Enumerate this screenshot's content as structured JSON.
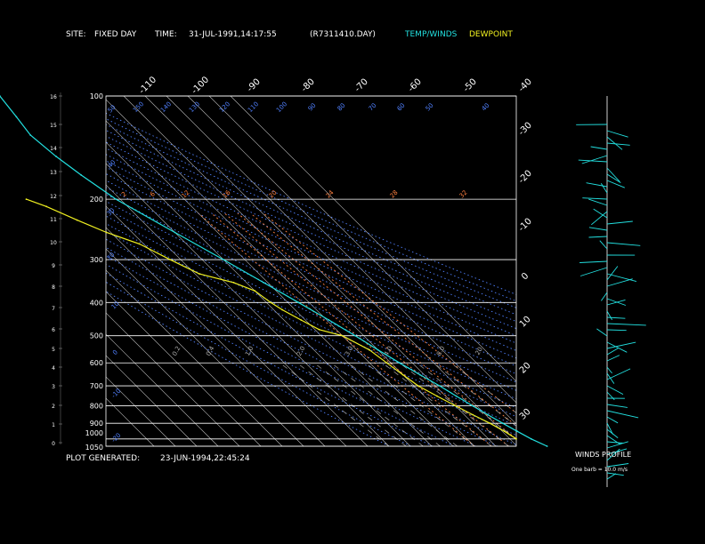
{
  "header": {
    "site_label": "SITE:",
    "site_value": "FIXED DAY",
    "time_label": "TIME:",
    "time_value": "31-JUL-1991,14:17:55",
    "file_value": "(R7311410.DAY)",
    "legend_temp": "TEMP/WINDS",
    "legend_dew": "DEWPOINT"
  },
  "footer": {
    "generated_label": "PLOT GENERATED:",
    "generated_value": "23-JUN-1994,22:45:24"
  },
  "winds_panel": {
    "title": "WINDS PROFILE",
    "note": "One barb = 10.0 m/s"
  },
  "colors": {
    "temp": "#22e0e0",
    "dew": "#f0f020",
    "text": "#ffffff",
    "axis": "#ffffff",
    "isotherm": "#ffffff",
    "dry_adiabat": "#5080ff",
    "moist_adiabat": "#ff8040",
    "mixing_ratio": "#aaaaaa",
    "winds": "#22e0e0"
  },
  "chart_data": [
    {
      "type": "line",
      "title": "",
      "ylabel": "",
      "xlabel": "",
      "pressure_ticks": [
        "100",
        "200",
        "300",
        "400",
        "500",
        "600",
        "700",
        "800",
        "900",
        "1000",
        "1050"
      ],
      "height_ticks": [
        "16",
        "15",
        "14",
        "13",
        "12",
        "11",
        "10",
        "9",
        "8",
        "7",
        "6",
        "5",
        "4",
        "3",
        "2",
        "1",
        "0"
      ],
      "top_temp_labels": [
        "-110",
        "-100",
        "-90",
        "-80",
        "-70",
        "-60",
        "-50",
        "-40"
      ],
      "right_temp_labels": [
        "-30",
        "-20",
        "-10",
        "0",
        "10",
        "20",
        "30"
      ],
      "dry_adiabat_labels": [
        "50",
        "40",
        "30",
        "20",
        "10",
        "0",
        "-10",
        "-20",
        "-30"
      ],
      "moist_adiabat_labels": [
        "150",
        "140",
        "130",
        "120",
        "110",
        "100",
        "90",
        "80",
        "70",
        "60",
        "50",
        "40"
      ],
      "mixing_ratio_labels": [
        "0.2",
        "0.4",
        "1.0",
        "2.0",
        "3.0",
        "4.0",
        "8.0",
        "20"
      ],
      "moist_labels_row": [
        "2",
        "6",
        "12",
        "16",
        "20",
        "24",
        "28",
        "32"
      ],
      "ylim_hPa": [
        1050,
        100
      ],
      "grid": true,
      "series": [
        {
          "name": "TEMP/WINDS",
          "pressure": [
            1050,
            1000,
            950,
            900,
            850,
            800,
            750,
            700,
            650,
            600,
            550,
            500,
            450,
            400,
            350,
            300,
            250,
            200,
            170,
            150,
            130,
            115,
            100
          ],
          "temperature": [
            34,
            30,
            27,
            24,
            21,
            18,
            15,
            12,
            8,
            4,
            0,
            -4,
            -9,
            -15,
            -22,
            -30,
            -40,
            -52,
            -57,
            -60,
            -62,
            -60,
            -58
          ]
        },
        {
          "name": "DEWPOINT",
          "pressure": [
            1000,
            950,
            900,
            850,
            800,
            750,
            700,
            650,
            600,
            550,
            500,
            480,
            450,
            420,
            400,
            370,
            350,
            330,
            300,
            270,
            250,
            230,
            210,
            200
          ],
          "dewpoint": [
            23,
            21,
            18,
            14,
            10,
            6,
            2,
            0,
            -2,
            -4,
            -10,
            -18,
            -22,
            -26,
            -28,
            -30,
            -36,
            -48,
            -55,
            -62,
            -72,
            -80,
            -88,
            -94
          ]
        }
      ]
    },
    {
      "type": "line",
      "title": "WINDS PROFILE",
      "x_label": "",
      "y_label": ""
    }
  ]
}
